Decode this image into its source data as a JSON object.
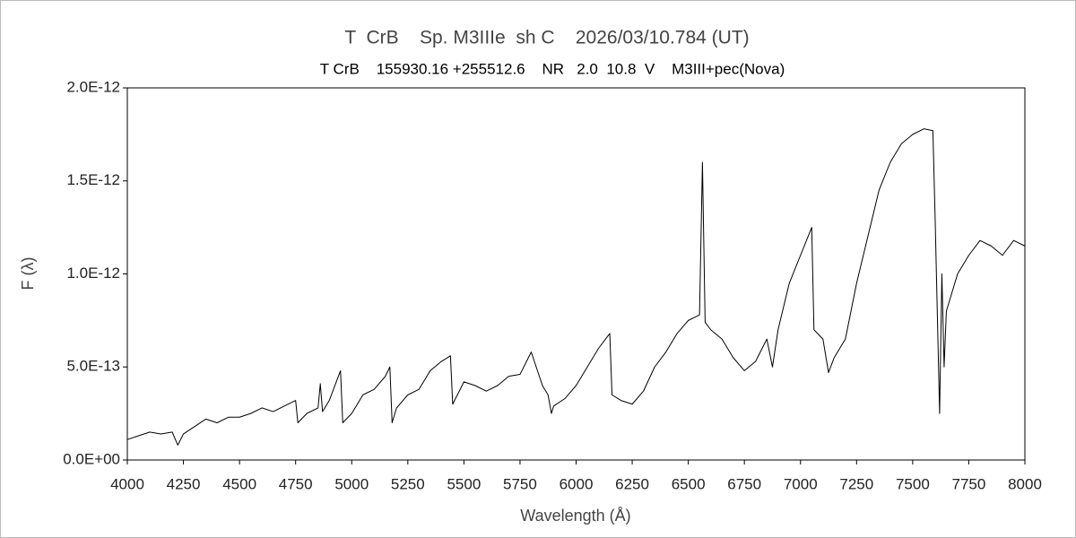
{
  "chart_data": {
    "type": "line",
    "title": "T  CrB    Sp. M3IIIe  sh C    2026/03/10.784 (UT)",
    "subtitle": "T CrB    155930.16 +255512.6    NR   2.0  10.8  V    M3III+pec(Nova)",
    "x_label": "Wavelength (Å)",
    "y_label": "F (λ)",
    "color": "#000000",
    "x": [
      4000,
      4050,
      4100,
      4150,
      4200,
      4225,
      4250,
      4300,
      4350,
      4400,
      4450,
      4500,
      4550,
      4600,
      4650,
      4700,
      4750,
      4760,
      4800,
      4850,
      4860,
      4870,
      4900,
      4950,
      4960,
      5000,
      5050,
      5100,
      5150,
      5170,
      5180,
      5200,
      5250,
      5300,
      5350,
      5400,
      5440,
      5450,
      5500,
      5550,
      5600,
      5650,
      5700,
      5750,
      5800,
      5850,
      5875,
      5890,
      5900,
      5950,
      6000,
      6050,
      6100,
      6150,
      6160,
      6200,
      6250,
      6300,
      6350,
      6400,
      6450,
      6500,
      6550,
      6563,
      6575,
      6600,
      6650,
      6700,
      6750,
      6800,
      6850,
      6875,
      6900,
      6950,
      7000,
      7050,
      7060,
      7100,
      7125,
      7150,
      7200,
      7250,
      7300,
      7350,
      7400,
      7450,
      7500,
      7550,
      7590,
      7600,
      7620,
      7630,
      7640,
      7650,
      7675,
      7700,
      7750,
      7800,
      7850,
      7900,
      7950,
      8000
    ],
    "values": [
      1.1e-13,
      1.3e-13,
      1.5e-13,
      1.4e-13,
      1.5e-13,
      8e-14,
      1.4e-13,
      1.8e-13,
      2.2e-13,
      2e-13,
      2.3e-13,
      2.3e-13,
      2.5e-13,
      2.8e-13,
      2.6e-13,
      2.9e-13,
      3.2e-13,
      2e-13,
      2.5e-13,
      2.8e-13,
      4.1e-13,
      2.6e-13,
      3.2e-13,
      4.8e-13,
      2e-13,
      2.5e-13,
      3.5e-13,
      3.8e-13,
      4.5e-13,
      5e-13,
      2e-13,
      2.8e-13,
      3.5e-13,
      3.8e-13,
      4.8e-13,
      5.3e-13,
      5.6e-13,
      3e-13,
      4.2e-13,
      4e-13,
      3.7e-13,
      4e-13,
      4.5e-13,
      4.6e-13,
      5.8e-13,
      4e-13,
      3.5e-13,
      2.5e-13,
      2.9e-13,
      3.3e-13,
      4e-13,
      5e-13,
      6e-13,
      6.8e-13,
      3.5e-13,
      3.2e-13,
      3e-13,
      3.7e-13,
      5e-13,
      5.8e-13,
      6.8e-13,
      7.5e-13,
      7.8e-13,
      1.6e-12,
      7.4e-13,
      7e-13,
      6.5e-13,
      5.5e-13,
      4.8e-13,
      5.3e-13,
      6.5e-13,
      5e-13,
      7e-13,
      9.5e-13,
      1.1e-12,
      1.25e-12,
      7e-13,
      6.5e-13,
      4.7e-13,
      5.5e-13,
      6.5e-13,
      9.5e-13,
      1.2e-12,
      1.45e-12,
      1.6e-12,
      1.7e-12,
      1.75e-12,
      1.78e-12,
      1.77e-12,
      1.3e-12,
      2.5e-13,
      1e-12,
      5e-13,
      8e-13,
      9e-13,
      1e-12,
      1.1e-12,
      1.18e-12,
      1.15e-12,
      1.1e-12,
      1.18e-12,
      1.15e-12
    ],
    "xlim": [
      4000,
      8000
    ],
    "xticks": [
      4000,
      4250,
      4500,
      4750,
      5000,
      5250,
      5500,
      5750,
      6000,
      6250,
      6500,
      6750,
      7000,
      7250,
      7500,
      7750,
      8000
    ],
    "ylim": [
      0,
      2e-12
    ],
    "yticks": [
      {
        "value": 0,
        "label": "0.0E+00"
      },
      {
        "value": 5e-13,
        "label": "5.0E-13"
      },
      {
        "value": 1e-12,
        "label": "1.0E-12"
      },
      {
        "value": 1.5e-12,
        "label": "1.5E-12"
      },
      {
        "value": 2e-12,
        "label": "2.0E-12"
      }
    ],
    "grid": false
  }
}
